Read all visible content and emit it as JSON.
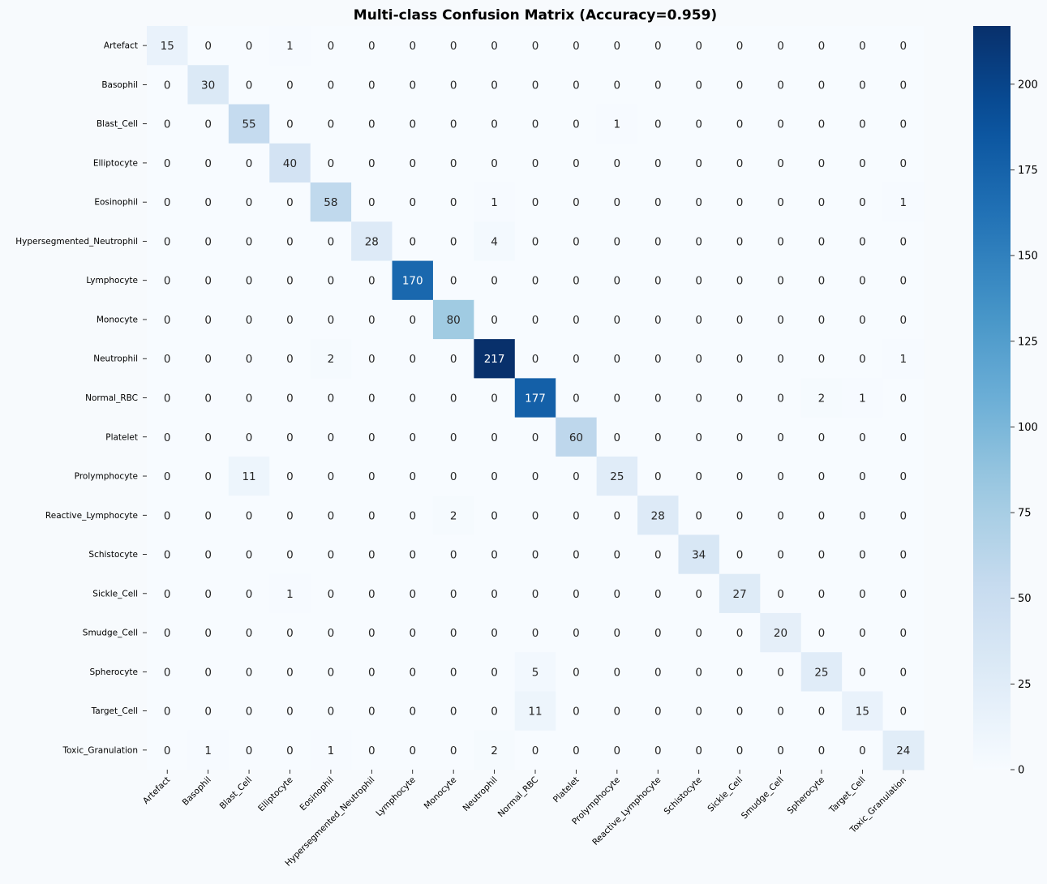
{
  "chart_data": {
    "type": "heatmap",
    "title": "Multi-class Confusion Matrix (Accuracy=0.959)",
    "xlabel": "",
    "ylabel": "",
    "x_categories": [
      "Artefact",
      "Basophil",
      "Blast_Cell",
      "Elliptocyte",
      "Eosinophil",
      "Hypersegmented_Neutrophil",
      "Lymphocyte",
      "Monocyte",
      "Neutrophil",
      "Normal_RBC",
      "Platelet",
      "Prolymphocyte",
      "Reactive_Lymphocyte",
      "Schistocyte",
      "Sickle_Cell",
      "Smudge_Cell",
      "Spherocyte",
      "Target_Cell",
      "Toxic_Granulation"
    ],
    "y_categories": [
      "Artefact",
      "Basophil",
      "Blast_Cell",
      "Elliptocyte",
      "Eosinophil",
      "Hypersegmented_Neutrophil",
      "Lymphocyte",
      "Monocyte",
      "Neutrophil",
      "Normal_RBC",
      "Platelet",
      "Prolymphocyte",
      "Reactive_Lymphocyte",
      "Schistocyte",
      "Sickle_Cell",
      "Smudge_Cell",
      "Spherocyte",
      "Target_Cell",
      "Toxic_Granulation"
    ],
    "matrix": [
      [
        15,
        0,
        0,
        1,
        0,
        0,
        0,
        0,
        0,
        0,
        0,
        0,
        0,
        0,
        0,
        0,
        0,
        0,
        0
      ],
      [
        0,
        30,
        0,
        0,
        0,
        0,
        0,
        0,
        0,
        0,
        0,
        0,
        0,
        0,
        0,
        0,
        0,
        0,
        0
      ],
      [
        0,
        0,
        55,
        0,
        0,
        0,
        0,
        0,
        0,
        0,
        0,
        1,
        0,
        0,
        0,
        0,
        0,
        0,
        0
      ],
      [
        0,
        0,
        0,
        40,
        0,
        0,
        0,
        0,
        0,
        0,
        0,
        0,
        0,
        0,
        0,
        0,
        0,
        0,
        0
      ],
      [
        0,
        0,
        0,
        0,
        58,
        0,
        0,
        0,
        1,
        0,
        0,
        0,
        0,
        0,
        0,
        0,
        0,
        0,
        1
      ],
      [
        0,
        0,
        0,
        0,
        0,
        28,
        0,
        0,
        4,
        0,
        0,
        0,
        0,
        0,
        0,
        0,
        0,
        0,
        0
      ],
      [
        0,
        0,
        0,
        0,
        0,
        0,
        170,
        0,
        0,
        0,
        0,
        0,
        0,
        0,
        0,
        0,
        0,
        0,
        0
      ],
      [
        0,
        0,
        0,
        0,
        0,
        0,
        0,
        80,
        0,
        0,
        0,
        0,
        0,
        0,
        0,
        0,
        0,
        0,
        0
      ],
      [
        0,
        0,
        0,
        0,
        2,
        0,
        0,
        0,
        217,
        0,
        0,
        0,
        0,
        0,
        0,
        0,
        0,
        0,
        1
      ],
      [
        0,
        0,
        0,
        0,
        0,
        0,
        0,
        0,
        0,
        177,
        0,
        0,
        0,
        0,
        0,
        0,
        2,
        1,
        0
      ],
      [
        0,
        0,
        0,
        0,
        0,
        0,
        0,
        0,
        0,
        0,
        60,
        0,
        0,
        0,
        0,
        0,
        0,
        0,
        0
      ],
      [
        0,
        0,
        11,
        0,
        0,
        0,
        0,
        0,
        0,
        0,
        0,
        25,
        0,
        0,
        0,
        0,
        0,
        0,
        0
      ],
      [
        0,
        0,
        0,
        0,
        0,
        0,
        0,
        2,
        0,
        0,
        0,
        0,
        28,
        0,
        0,
        0,
        0,
        0,
        0
      ],
      [
        0,
        0,
        0,
        0,
        0,
        0,
        0,
        0,
        0,
        0,
        0,
        0,
        0,
        34,
        0,
        0,
        0,
        0,
        0
      ],
      [
        0,
        0,
        0,
        1,
        0,
        0,
        0,
        0,
        0,
        0,
        0,
        0,
        0,
        0,
        27,
        0,
        0,
        0,
        0
      ],
      [
        0,
        0,
        0,
        0,
        0,
        0,
        0,
        0,
        0,
        0,
        0,
        0,
        0,
        0,
        0,
        20,
        0,
        0,
        0
      ],
      [
        0,
        0,
        0,
        0,
        0,
        0,
        0,
        0,
        0,
        5,
        0,
        0,
        0,
        0,
        0,
        0,
        25,
        0,
        0
      ],
      [
        0,
        0,
        0,
        0,
        0,
        0,
        0,
        0,
        0,
        11,
        0,
        0,
        0,
        0,
        0,
        0,
        0,
        15,
        0
      ],
      [
        0,
        1,
        0,
        0,
        1,
        0,
        0,
        0,
        2,
        0,
        0,
        0,
        0,
        0,
        0,
        0,
        0,
        0,
        24
      ]
    ],
    "colorbar": {
      "cmap": "Blues",
      "min": 0,
      "max": 217,
      "ticks": [
        0,
        25,
        50,
        75,
        100,
        125,
        150,
        175,
        200
      ]
    },
    "colors": {
      "background": "#f7fafd",
      "low": "#f7fbff",
      "high": "#08306b",
      "text_dark": "#262626",
      "text_light": "#ffffff"
    }
  }
}
